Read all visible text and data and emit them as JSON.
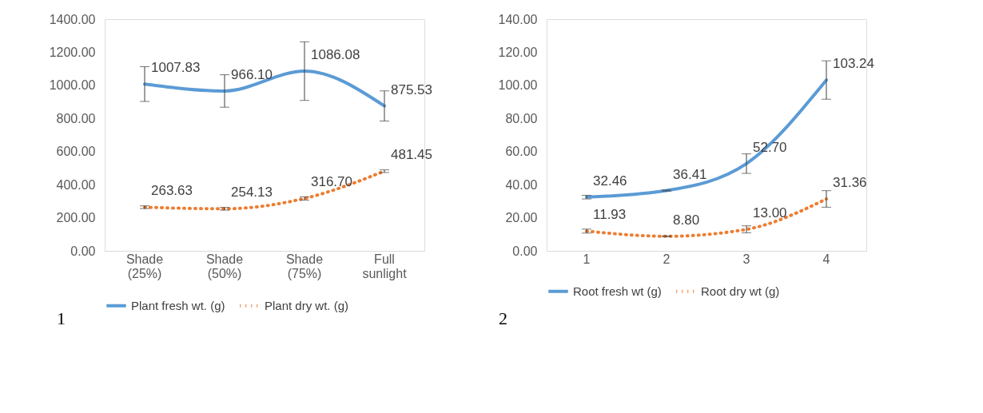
{
  "chart_data": [
    {
      "type": "line",
      "categories": [
        "Shade (25%)",
        "Shade (50%)",
        "Shade (75%)",
        "Full sunlight"
      ],
      "ylim": [
        0,
        1400
      ],
      "yticks": [
        {
          "value": 0,
          "label": "0.00"
        },
        {
          "value": 200,
          "label": "200.00"
        },
        {
          "value": 400,
          "label": "400.00"
        },
        {
          "value": 600,
          "label": "600.00"
        },
        {
          "value": 800,
          "label": "800.00"
        },
        {
          "value": 1000,
          "label": "1000.00"
        },
        {
          "value": 1200,
          "label": "1200.00"
        },
        {
          "value": 1400,
          "label": "1400.00"
        }
      ],
      "grid": false,
      "legend": "bottom",
      "annotations": [
        "1"
      ],
      "series": [
        {
          "name": "Plant fresh wt. (g)",
          "color": "#5b9bd5",
          "line_style": "solid",
          "values": [
            1007.83,
            966.1,
            1086.08,
            875.53
          ],
          "value_labels": [
            "1007.83",
            "966.10",
            "1086.08",
            "875.53"
          ],
          "errors": [
            105,
            98,
            177,
            91
          ]
        },
        {
          "name": "Plant dry wt. (g)",
          "color": "#ed7d31",
          "line_style": "dotted",
          "values": [
            263.63,
            254.13,
            316.7,
            481.45
          ],
          "value_labels": [
            "263.63",
            "254.13",
            "316.70",
            "481.45"
          ],
          "errors": [
            8,
            8,
            10,
            8
          ]
        }
      ]
    },
    {
      "type": "line",
      "categories": [
        "1",
        "2",
        "3",
        "4"
      ],
      "ylim": [
        0,
        140
      ],
      "yticks": [
        {
          "value": 0,
          "label": "0.00"
        },
        {
          "value": 20,
          "label": "20.00"
        },
        {
          "value": 40,
          "label": "40.00"
        },
        {
          "value": 60,
          "label": "60.00"
        },
        {
          "value": 80,
          "label": "80.00"
        },
        {
          "value": 100,
          "label": "100.00"
        },
        {
          "value": 120,
          "label": "120.00"
        },
        {
          "value": 140,
          "label": "140.00"
        }
      ],
      "grid": false,
      "legend": "bottom",
      "annotations": [
        "2"
      ],
      "series": [
        {
          "name": "Root fresh wt (g)",
          "color": "#5b9bd5",
          "line_style": "solid",
          "values": [
            32.46,
            36.41,
            52.7,
            103.24
          ],
          "value_labels": [
            "32.46",
            "36.41",
            "52.70",
            "103.24"
          ],
          "errors": [
            1.1,
            0.3,
            5.9,
            11.6
          ]
        },
        {
          "name": "Root dry wt (g)",
          "color": "#ed7d31",
          "line_style": "dotted",
          "values": [
            11.93,
            8.8,
            13.0,
            31.36
          ],
          "value_labels": [
            "11.93",
            "8.80",
            "13.00",
            "31.36"
          ],
          "errors": [
            1.2,
            0.3,
            2.1,
            5.0
          ]
        }
      ]
    }
  ]
}
